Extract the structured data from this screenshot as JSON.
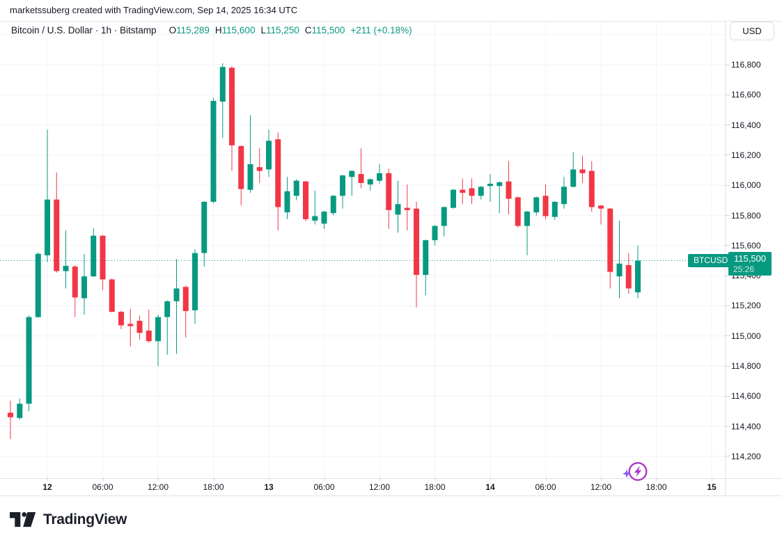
{
  "attribution": "marketssuberg created with TradingView.com, Sep 14, 2025 16:34 UTC",
  "header": {
    "symbol_title": "Bitcoin / U.S. Dollar · 1h · Bitstamp",
    "ohlc": [
      {
        "k": "O",
        "v": "115,289"
      },
      {
        "k": "H",
        "v": "115,600"
      },
      {
        "k": "L",
        "v": "115,250"
      },
      {
        "k": "C",
        "v": "115,500"
      }
    ],
    "change": "+211 (+0.18%)"
  },
  "currency_button": "USD",
  "price_scale": {
    "labels": [
      "116,800",
      "116,600",
      "116,400",
      "116,200",
      "116,000",
      "115,800",
      "115,600",
      "115,400",
      "115,200",
      "115,000",
      "114,800",
      "114,600",
      "114,400",
      "114,200"
    ]
  },
  "time_scale": {
    "ticks": [
      {
        "label": "12",
        "bold": true
      },
      {
        "label": "06:00",
        "bold": false
      },
      {
        "label": "12:00",
        "bold": false
      },
      {
        "label": "18:00",
        "bold": false
      },
      {
        "label": "13",
        "bold": true
      },
      {
        "label": "06:00",
        "bold": false
      },
      {
        "label": "12:00",
        "bold": false
      },
      {
        "label": "18:00",
        "bold": false
      },
      {
        "label": "14",
        "bold": true
      },
      {
        "label": "06:00",
        "bold": false
      },
      {
        "label": "12:00",
        "bold": false
      },
      {
        "label": "18:00",
        "bold": false
      },
      {
        "label": "15",
        "bold": true
      }
    ]
  },
  "price_line": {
    "symbol_badge": "BTCUSD",
    "price": "115,500",
    "countdown": "25:26",
    "value": 115500
  },
  "logo": {
    "text": "TradingView"
  },
  "icons": {
    "flash": "lightning-in-circle-with-sparkle"
  },
  "colors": {
    "up": "#089981",
    "down": "#f23645",
    "grid": "#f0f3fa",
    "border": "#e0e3eb",
    "flash_purple": "#ad36c6",
    "sparkle_purple": "#7d5ef5"
  },
  "chart_data": {
    "type": "candlestick",
    "title": "Bitcoin / U.S. Dollar",
    "symbol": "BTCUSD",
    "exchange": "Bitstamp",
    "interval": "1h",
    "last_price": 115500,
    "countdown": "25:26",
    "ylim": [
      114100,
      117000
    ],
    "price_step": 200,
    "grid": true,
    "columns": [
      "time",
      "open",
      "high",
      "low",
      "close"
    ],
    "candles": [
      [
        "Sep 11 20:00",
        114490,
        114570,
        114315,
        114460
      ],
      [
        "Sep 11 21:00",
        114455,
        114585,
        114445,
        114550
      ],
      [
        "Sep 11 22:00",
        114550,
        115135,
        114500,
        115125
      ],
      [
        "Sep 11 23:00",
        115125,
        115555,
        115120,
        115545
      ],
      [
        "Sep 12 00:00",
        115535,
        116370,
        115490,
        115905
      ],
      [
        "Sep 12 01:00",
        115905,
        116085,
        115420,
        115430
      ],
      [
        "Sep 12 02:00",
        115430,
        115700,
        115315,
        115465
      ],
      [
        "Sep 12 03:00",
        115460,
        115470,
        115125,
        115255
      ],
      [
        "Sep 12 04:00",
        115250,
        115545,
        115140,
        115395
      ],
      [
        "Sep 12 05:00",
        115395,
        115715,
        115390,
        115665
      ],
      [
        "Sep 12 06:00",
        115665,
        115670,
        115305,
        115375
      ],
      [
        "Sep 12 07:00",
        115375,
        115380,
        115155,
        115160
      ],
      [
        "Sep 12 08:00",
        115160,
        115165,
        115045,
        115070
      ],
      [
        "Sep 12 09:00",
        115080,
        115180,
        114930,
        115065
      ],
      [
        "Sep 12 10:00",
        115100,
        115135,
        114975,
        115020
      ],
      [
        "Sep 12 11:00",
        115035,
        115175,
        114955,
        114965
      ],
      [
        "Sep 12 12:00",
        114965,
        115140,
        114800,
        115125
      ],
      [
        "Sep 12 13:00",
        115125,
        115235,
        114875,
        115230
      ],
      [
        "Sep 12 14:00",
        115230,
        115510,
        114880,
        115315
      ],
      [
        "Sep 12 15:00",
        115325,
        115335,
        114990,
        115165
      ],
      [
        "Sep 12 16:00",
        115170,
        115575,
        115080,
        115550
      ],
      [
        "Sep 12 17:00",
        115550,
        115895,
        115460,
        115890
      ],
      [
        "Sep 12 18:00",
        115890,
        116580,
        115880,
        116560
      ],
      [
        "Sep 12 19:00",
        116555,
        116810,
        116315,
        116785
      ],
      [
        "Sep 12 20:00",
        116780,
        116790,
        116095,
        116265
      ],
      [
        "Sep 12 21:00",
        116260,
        116265,
        115865,
        115975
      ],
      [
        "Sep 12 22:00",
        115970,
        116465,
        115950,
        116140
      ],
      [
        "Sep 12 23:00",
        116120,
        116245,
        116015,
        116095
      ],
      [
        "Sep 13 00:00",
        116105,
        116370,
        116055,
        116295
      ],
      [
        "Sep 13 01:00",
        116305,
        116350,
        115700,
        115855
      ],
      [
        "Sep 13 02:00",
        115820,
        116055,
        115775,
        115960
      ],
      [
        "Sep 13 03:00",
        115930,
        116040,
        115900,
        116030
      ],
      [
        "Sep 13 04:00",
        116025,
        116030,
        115760,
        115775
      ],
      [
        "Sep 13 05:00",
        115765,
        115965,
        115740,
        115795
      ],
      [
        "Sep 13 06:00",
        115745,
        115830,
        115710,
        115825
      ],
      [
        "Sep 13 07:00",
        115815,
        115935,
        115800,
        115930
      ],
      [
        "Sep 13 08:00",
        115930,
        116070,
        115845,
        116065
      ],
      [
        "Sep 13 09:00",
        116055,
        116100,
        115930,
        116095
      ],
      [
        "Sep 13 10:00",
        116075,
        116245,
        115980,
        116015
      ],
      [
        "Sep 13 11:00",
        116005,
        116045,
        115965,
        116040
      ],
      [
        "Sep 13 12:00",
        116030,
        116140,
        116010,
        116080
      ],
      [
        "Sep 13 13:00",
        116080,
        116110,
        115710,
        115835
      ],
      [
        "Sep 13 14:00",
        115805,
        116030,
        115685,
        115875
      ],
      [
        "Sep 13 15:00",
        115850,
        116005,
        115700,
        115835
      ],
      [
        "Sep 13 16:00",
        115845,
        115890,
        115190,
        115405
      ],
      [
        "Sep 13 17:00",
        115405,
        115640,
        115270,
        115635
      ],
      [
        "Sep 13 18:00",
        115635,
        115735,
        115600,
        115730
      ],
      [
        "Sep 13 19:00",
        115730,
        115860,
        115660,
        115855
      ],
      [
        "Sep 13 20:00",
        115850,
        115975,
        115845,
        115970
      ],
      [
        "Sep 13 21:00",
        115970,
        116045,
        115875,
        115950
      ],
      [
        "Sep 13 22:00",
        115980,
        116045,
        115875,
        115930
      ],
      [
        "Sep 13 23:00",
        115930,
        115995,
        115905,
        115990
      ],
      [
        "Sep 14 00:00",
        115995,
        116075,
        115890,
        116010
      ],
      [
        "Sep 14 01:00",
        115995,
        116025,
        115815,
        116020
      ],
      [
        "Sep 14 02:00",
        116025,
        116160,
        115805,
        115910
      ],
      [
        "Sep 14 03:00",
        115920,
        115925,
        115720,
        115730
      ],
      [
        "Sep 14 04:00",
        115730,
        115830,
        115535,
        115825
      ],
      [
        "Sep 14 05:00",
        115820,
        115925,
        115800,
        115920
      ],
      [
        "Sep 14 06:00",
        115930,
        116005,
        115775,
        115795
      ],
      [
        "Sep 14 07:00",
        115790,
        115895,
        115770,
        115890
      ],
      [
        "Sep 14 08:00",
        115875,
        116055,
        115845,
        115990
      ],
      [
        "Sep 14 09:00",
        115990,
        116220,
        115985,
        116105
      ],
      [
        "Sep 14 10:00",
        116105,
        116195,
        116015,
        116080
      ],
      [
        "Sep 14 11:00",
        116095,
        116160,
        115825,
        115855
      ],
      [
        "Sep 14 12:00",
        115865,
        115870,
        115740,
        115845
      ],
      [
        "Sep 14 13:00",
        115845,
        115850,
        115315,
        115425
      ],
      [
        "Sep 14 14:00",
        115395,
        115765,
        115250,
        115480
      ],
      [
        "Sep 14 15:00",
        115470,
        115550,
        115280,
        115315
      ],
      [
        "Sep 14 16:00",
        115289,
        115600,
        115250,
        115500
      ]
    ]
  }
}
